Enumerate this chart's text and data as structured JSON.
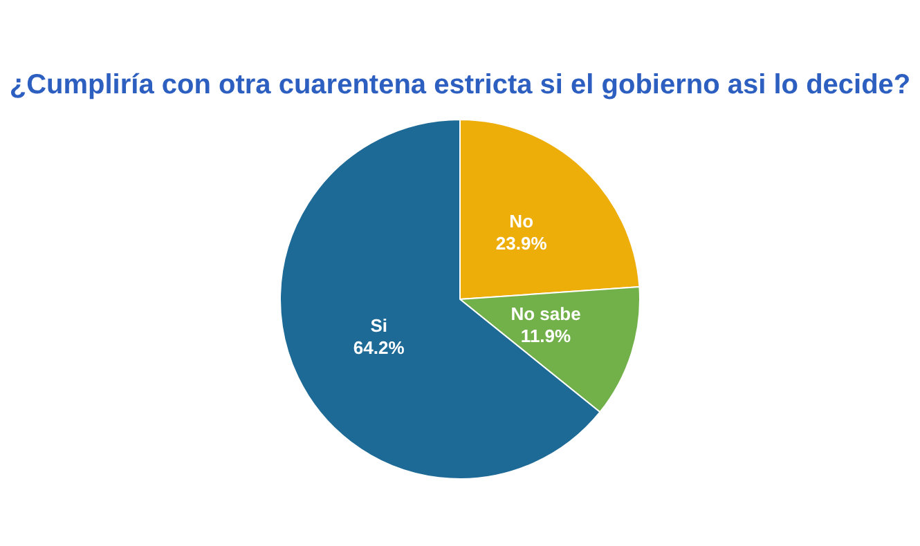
{
  "chart_data": {
    "type": "pie",
    "title": "¿Cumpliría con otra cuarentena estricta si el gobierno asi lo decide?",
    "categories": [
      "No",
      "No sabe",
      "Si"
    ],
    "values": [
      23.9,
      11.9,
      64.2
    ],
    "value_labels": [
      "23.9%",
      "11.9%",
      "64.2%"
    ],
    "colors": [
      "#eeae0a",
      "#72b04a",
      "#1e6a96"
    ],
    "legend": false
  }
}
